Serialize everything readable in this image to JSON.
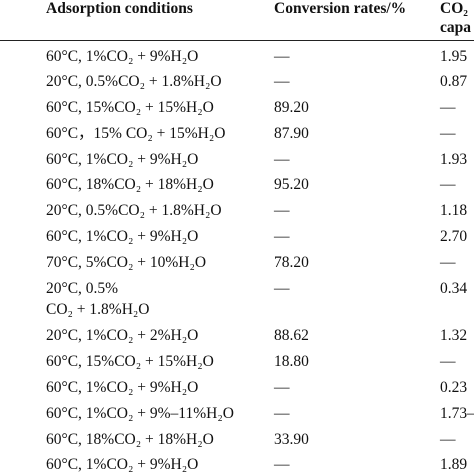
{
  "header": {
    "col1": "Adsorption conditions",
    "col2": "Conversion rates/%",
    "col3_line1": "CO₂",
    "col3_line2": "capa"
  },
  "rows": [
    {
      "c1": "60°C, 1%CO₂ + 9%H₂O",
      "c2": "—",
      "c3": "1.95"
    },
    {
      "c1": "20°C, 0.5%CO₂ + 1.8%H₂O",
      "c2": "—",
      "c3": "0.87"
    },
    {
      "c1": "60°C, 15%CO₂ + 15%H₂O",
      "c2": "89.20",
      "c3": "—"
    },
    {
      "c1": "60°C，15% CO₂ + 15%H₂O",
      "c2": "87.90",
      "c3": "—"
    },
    {
      "c1": "60°C, 1%CO₂ + 9%H₂O",
      "c2": "—",
      "c3": "1.93"
    },
    {
      "c1": "60°C, 18%CO₂ + 18%H₂O",
      "c2": "95.20",
      "c3": "—"
    },
    {
      "c1": "20°C, 0.5%CO₂ + 1.8%H₂O",
      "c2": "—",
      "c3": "1.18"
    },
    {
      "c1": "60°C, 1%CO₂ + 9%H₂O",
      "c2": "—",
      "c3": "2.70"
    },
    {
      "c1": "70°C, 5%CO₂ + 10%H₂O",
      "c2": "78.20",
      "c3": "—"
    },
    {
      "c1": "20°C, 0.5%",
      "c1b": "CO₂ + 1.8%H₂O",
      "c2": "—",
      "c3": "0.34"
    },
    {
      "c1": "20°C, 1%CO₂ + 2%H₂O",
      "c2": "88.62",
      "c3": "1.32"
    },
    {
      "c1": "60°C, 15%CO₂ + 15%H₂O",
      "c2": "18.80",
      "c3": "—"
    },
    {
      "c1": "60°C, 1%CO₂ + 9%H₂O",
      "c2": "—",
      "c3": "0.23"
    },
    {
      "c1": "60°C, 1%CO₂ + 9%–11%H₂O",
      "c2": "—",
      "c3": "1.73–"
    },
    {
      "c1": "60°C, 18%CO₂ + 18%H₂O",
      "c2": "33.90",
      "c3": "—"
    },
    {
      "c1": "60°C, 1%CO₂ + 9%H₂O",
      "c2": "—",
      "c3": "1.89"
    }
  ]
}
